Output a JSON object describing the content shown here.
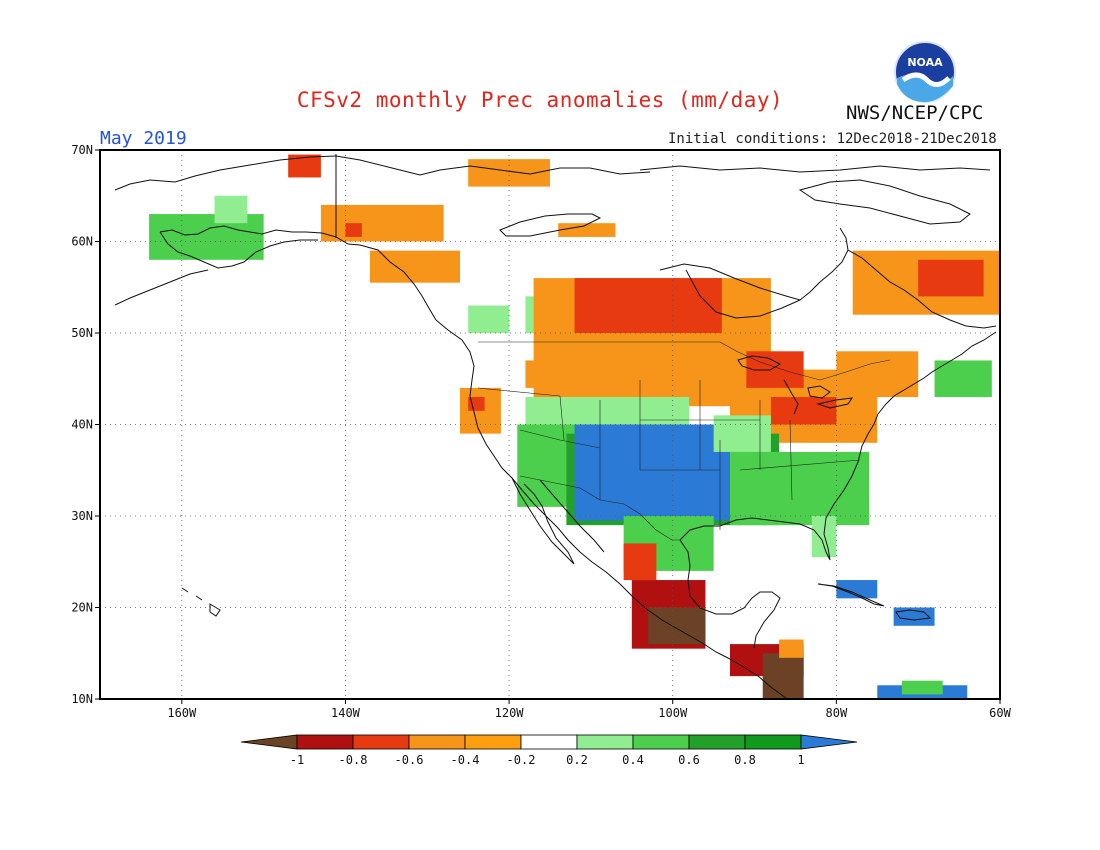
{
  "header": {
    "title": "CFSv2 monthly Prec anomalies (mm/day)",
    "agency": "NWS/NCEP/CPC",
    "month": "May 2019",
    "initial_conditions": "Initial conditions: 12Dec2018-21Dec2018",
    "logo_text": "NOAA"
  },
  "map": {
    "lat_range": [
      10,
      70
    ],
    "lon_range": [
      -170,
      -60
    ],
    "lat_ticks": [
      {
        "value": 70,
        "label": "70N"
      },
      {
        "value": 60,
        "label": "60N"
      },
      {
        "value": 50,
        "label": "50N"
      },
      {
        "value": 40,
        "label": "40N"
      },
      {
        "value": 30,
        "label": "30N"
      },
      {
        "value": 20,
        "label": "20N"
      },
      {
        "value": 10,
        "label": "10N"
      }
    ],
    "lon_ticks": [
      {
        "value": -160,
        "label": "160W"
      },
      {
        "value": -140,
        "label": "140W"
      },
      {
        "value": -120,
        "label": "120W"
      },
      {
        "value": -100,
        "label": "100W"
      },
      {
        "value": -80,
        "label": "80W"
      },
      {
        "value": -60,
        "label": "60W"
      }
    ],
    "grid": "dotted",
    "anomaly_regions": [
      {
        "lon_min": -147,
        "lon_max": -143,
        "lat_min": 67,
        "lat_max": 69.5,
        "class": "-0.6"
      },
      {
        "lon_min": -143,
        "lon_max": -128,
        "lat_min": 60,
        "lat_max": 64,
        "class": "-0.4"
      },
      {
        "lon_min": -140,
        "lon_max": -138,
        "lat_min": 60.5,
        "lat_max": 62,
        "class": "-0.6"
      },
      {
        "lon_min": -137,
        "lon_max": -126,
        "lat_min": 55.5,
        "lat_max": 59,
        "class": "-0.4"
      },
      {
        "lon_min": -125,
        "lon_max": -115,
        "lat_min": 66,
        "lat_max": 69,
        "class": "-0.4"
      },
      {
        "lon_min": -114,
        "lon_max": -107,
        "lat_min": 60.5,
        "lat_max": 62,
        "class": "-0.4"
      },
      {
        "lon_min": -164,
        "lon_max": -150,
        "lat_min": 58,
        "lat_max": 63,
        "class": "0.6"
      },
      {
        "lon_min": -156,
        "lon_max": -152,
        "lat_min": 62,
        "lat_max": 65,
        "class": "0.4"
      },
      {
        "lon_min": -125,
        "lon_max": -120,
        "lat_min": 50,
        "lat_max": 53,
        "class": "0.4"
      },
      {
        "lon_min": -118,
        "lon_max": -112,
        "lat_min": 50,
        "lat_max": 54,
        "class": "0.4"
      },
      {
        "lon_min": -126,
        "lon_max": -121,
        "lat_min": 39,
        "lat_max": 44,
        "class": "-0.4"
      },
      {
        "lon_min": -125,
        "lon_max": -123,
        "lat_min": 41.5,
        "lat_max": 43,
        "class": "-0.6"
      },
      {
        "lon_min": -118,
        "lon_max": -113,
        "lat_min": 44,
        "lat_max": 47,
        "class": "-0.4"
      },
      {
        "lon_min": -117,
        "lon_max": -88,
        "lat_min": 42,
        "lat_max": 56,
        "class": "-0.4"
      },
      {
        "lon_min": -112,
        "lon_max": -94,
        "lat_min": 50,
        "lat_max": 56,
        "class": "-0.6"
      },
      {
        "lon_min": -93,
        "lon_max": -75,
        "lat_min": 38,
        "lat_max": 46,
        "class": "-0.4"
      },
      {
        "lon_min": -91,
        "lon_max": -84,
        "lat_min": 44,
        "lat_max": 48,
        "class": "-0.6"
      },
      {
        "lon_min": -88,
        "lon_max": -80,
        "lat_min": 40,
        "lat_max": 43,
        "class": "-0.6"
      },
      {
        "lon_min": -78,
        "lon_max": -60,
        "lat_min": 52,
        "lat_max": 59,
        "class": "-0.4"
      },
      {
        "lon_min": -70,
        "lon_max": -62,
        "lat_min": 54,
        "lat_max": 58,
        "class": "-0.6"
      },
      {
        "lon_min": -80,
        "lon_max": -70,
        "lat_min": 43,
        "lat_max": 48,
        "class": "-0.4"
      },
      {
        "lon_min": -118,
        "lon_max": -98,
        "lat_min": 36,
        "lat_max": 43,
        "class": "0.4"
      },
      {
        "lon_min": -119,
        "lon_max": -104,
        "lat_min": 31,
        "lat_max": 40,
        "class": "0.6"
      },
      {
        "lon_min": -113,
        "lon_max": -87,
        "lat_min": 29,
        "lat_max": 39,
        "class": "0.8"
      },
      {
        "lon_min": -112,
        "lon_max": -93,
        "lat_min": 29.5,
        "lat_max": 40,
        "class": "1"
      },
      {
        "lon_min": -106,
        "lon_max": -95,
        "lat_min": 24,
        "lat_max": 30,
        "class": "0.6"
      },
      {
        "lon_min": -93,
        "lon_max": -76,
        "lat_min": 29,
        "lat_max": 37,
        "class": "0.6"
      },
      {
        "lon_min": -83,
        "lon_max": -80,
        "lat_min": 25.5,
        "lat_max": 30,
        "class": "0.4"
      },
      {
        "lon_min": -95,
        "lon_max": -88,
        "lat_min": 37,
        "lat_max": 41,
        "class": "0.4"
      },
      {
        "lon_min": -68,
        "lon_max": -61,
        "lat_min": 43,
        "lat_max": 47,
        "class": "0.6"
      },
      {
        "lon_min": -106,
        "lon_max": -102,
        "lat_min": 23,
        "lat_max": 27,
        "class": "-0.6"
      },
      {
        "lon_min": -105,
        "lon_max": -96,
        "lat_min": 15.5,
        "lat_max": 23,
        "class": "-0.8"
      },
      {
        "lon_min": -103,
        "lon_max": -96,
        "lat_min": 16,
        "lat_max": 20,
        "class": "-1"
      },
      {
        "lon_min": -93,
        "lon_max": -84,
        "lat_min": 12.5,
        "lat_max": 16,
        "class": "-0.8"
      },
      {
        "lon_min": -89,
        "lon_max": -84,
        "lat_min": 10,
        "lat_max": 15,
        "class": "-1"
      },
      {
        "lon_min": -87,
        "lon_max": -84,
        "lat_min": 14.5,
        "lat_max": 16.5,
        "class": "-0.4"
      },
      {
        "lon_min": -80,
        "lon_max": -75,
        "lat_min": 21,
        "lat_max": 23,
        "class": "1"
      },
      {
        "lon_min": -73,
        "lon_max": -68,
        "lat_min": 18,
        "lat_max": 20,
        "class": "1"
      },
      {
        "lon_min": -75,
        "lon_max": -64,
        "lat_min": 10,
        "lat_max": 11.5,
        "class": "1"
      },
      {
        "lon_min": -72,
        "lon_max": -67,
        "lat_min": 10.5,
        "lat_max": 12,
        "class": "0.6"
      }
    ]
  },
  "colorbar": {
    "labels": [
      "-1",
      "-0.8",
      "-0.6",
      "-0.4",
      "-0.2",
      "0.2",
      "0.4",
      "0.6",
      "0.8",
      "1"
    ],
    "classes": [
      {
        "key": "-1",
        "color": "#6b4226"
      },
      {
        "key": "-0.8",
        "color": "#b01010"
      },
      {
        "key": "-0.6",
        "color": "#e83a10"
      },
      {
        "key": "-0.4",
        "color": "#f7941a"
      },
      {
        "key": "0",
        "color": "#ffffff"
      },
      {
        "key": "0.4",
        "color": "#90ee90"
      },
      {
        "key": "0.6",
        "color": "#4ccf4c"
      },
      {
        "key": "0.8",
        "color": "#22a02a"
      },
      {
        "key": "1",
        "color": "#2a7ad6"
      }
    ],
    "segment_colors": [
      "#b01010",
      "#e83a10",
      "#f7941a",
      "#ff9f10",
      "#ffffff",
      "#90ee90",
      "#4ccf4c",
      "#22a02a",
      "#0f9a1e"
    ],
    "low_arrow_color": "#6b4226",
    "high_arrow_color": "#2a7ad6"
  }
}
